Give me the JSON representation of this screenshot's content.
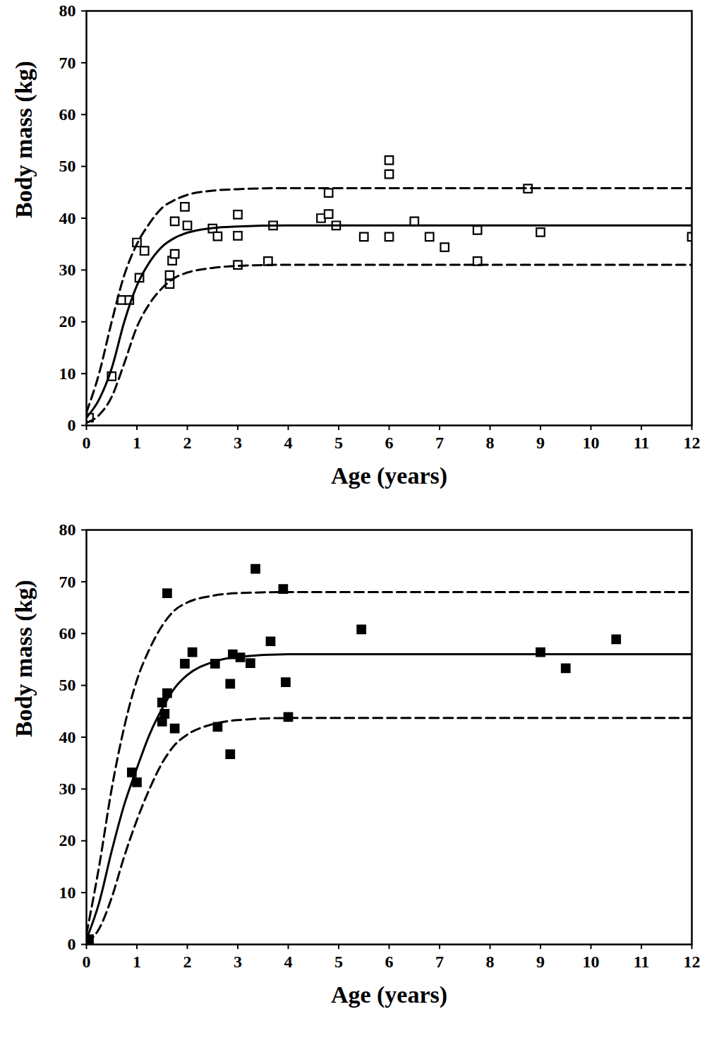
{
  "chart_data": [
    {
      "type": "scatter",
      "xlabel": "Age (years)",
      "ylabel": "Body mass (kg)",
      "xlim": [
        0,
        12
      ],
      "ylim": [
        0,
        80
      ],
      "xticks": [
        0,
        1,
        2,
        3,
        4,
        5,
        6,
        7,
        8,
        9,
        10,
        11,
        12
      ],
      "yticks": [
        0,
        10,
        20,
        30,
        40,
        50,
        60,
        70,
        80
      ],
      "grid": false,
      "series": [
        {
          "type": "scatter",
          "marker": "open_square",
          "color": "#000000",
          "x": [
            0.05,
            0.5,
            0.7,
            0.85,
            1.0,
            1.05,
            1.15,
            1.65,
            1.65,
            1.7,
            1.75,
            1.75,
            1.95,
            2.0,
            2.5,
            2.6,
            3.0,
            3.0,
            3.0,
            3.6,
            3.7,
            4.65,
            4.8,
            4.8,
            4.95,
            5.5,
            6.0,
            6.0,
            6.0,
            6.5,
            6.8,
            7.1,
            7.75,
            7.75,
            8.75,
            9.0,
            12.0
          ],
          "values": [
            1.5,
            9.5,
            24.2,
            24.2,
            35.3,
            28.5,
            33.7,
            27.3,
            29.0,
            31.8,
            33.1,
            39.4,
            42.2,
            38.6,
            38.0,
            36.5,
            40.7,
            36.6,
            31.0,
            31.7,
            38.6,
            40.0,
            44.9,
            40.8,
            38.6,
            36.4,
            51.2,
            48.5,
            36.4,
            39.4,
            36.4,
            34.4,
            37.7,
            31.7,
            45.7,
            37.3,
            36.4
          ]
        },
        {
          "type": "line",
          "line_style": "solid",
          "color": "#000000",
          "x": [
            0,
            0.25,
            0.5,
            0.75,
            1,
            1.25,
            1.5,
            1.75,
            2,
            2.5,
            3,
            4,
            6,
            12
          ],
          "values": [
            1.5,
            5,
            11,
            20,
            27,
            31.5,
            34.5,
            36.2,
            37.2,
            38.1,
            38.4,
            38.6,
            38.6,
            38.6
          ]
        },
        {
          "type": "line",
          "line_style": "dashed",
          "color": "#000000",
          "x": [
            0,
            0.25,
            0.5,
            0.75,
            1,
            1.25,
            1.5,
            1.75,
            2,
            2.5,
            3,
            4,
            12
          ],
          "values": [
            2.5,
            10,
            20,
            29,
            35,
            39,
            42,
            43.5,
            44.5,
            45.3,
            45.6,
            45.8,
            45.8
          ]
        },
        {
          "type": "line",
          "line_style": "dashed",
          "color": "#000000",
          "x": [
            0,
            0.25,
            0.5,
            0.75,
            1,
            1.25,
            1.5,
            1.75,
            2,
            2.5,
            3,
            4,
            12
          ],
          "values": [
            0.5,
            2,
            5.5,
            12,
            19,
            23.5,
            26.5,
            28.5,
            29.5,
            30.4,
            30.8,
            31,
            31
          ]
        }
      ]
    },
    {
      "type": "scatter",
      "xlabel": "Age (years)",
      "ylabel": "Body mass (kg)",
      "xlim": [
        0,
        12
      ],
      "ylim": [
        0,
        80
      ],
      "xticks": [
        0,
        1,
        2,
        3,
        4,
        5,
        6,
        7,
        8,
        9,
        10,
        11,
        12
      ],
      "yticks": [
        0,
        10,
        20,
        30,
        40,
        50,
        60,
        70,
        80
      ],
      "grid": false,
      "series": [
        {
          "type": "scatter",
          "marker": "square",
          "color": "#000000",
          "x": [
            0.05,
            0.9,
            1.0,
            1.5,
            1.5,
            1.55,
            1.6,
            1.6,
            1.75,
            1.95,
            2.1,
            2.55,
            2.6,
            2.85,
            2.85,
            2.9,
            3.05,
            3.25,
            3.35,
            3.65,
            3.9,
            3.95,
            4.0,
            5.45,
            9.0,
            9.5,
            10.5
          ],
          "values": [
            1.0,
            33.2,
            31.3,
            43.0,
            46.7,
            44.5,
            48.5,
            67.8,
            41.7,
            54.2,
            56.4,
            54.2,
            42.0,
            50.3,
            36.7,
            56.0,
            55.4,
            54.3,
            72.5,
            58.5,
            68.6,
            50.6,
            43.9,
            60.8,
            56.4,
            53.3,
            58.9
          ]
        },
        {
          "type": "line",
          "line_style": "solid",
          "color": "#000000",
          "x": [
            0,
            0.25,
            0.5,
            0.75,
            1,
            1.25,
            1.5,
            1.75,
            2,
            2.5,
            3,
            4,
            12
          ],
          "values": [
            1,
            8,
            18,
            27,
            34,
            40.5,
            45.5,
            49.5,
            52,
            54.5,
            55.5,
            56,
            56
          ]
        },
        {
          "type": "line",
          "line_style": "dashed",
          "color": "#000000",
          "x": [
            0,
            0.25,
            0.5,
            0.75,
            1,
            1.25,
            1.5,
            1.75,
            2,
            2.5,
            3,
            4,
            12
          ],
          "values": [
            2,
            15,
            30,
            42,
            51,
            57,
            61.5,
            64.5,
            66,
            67.3,
            67.8,
            68,
            68
          ]
        },
        {
          "type": "line",
          "line_style": "dashed",
          "color": "#000000",
          "x": [
            0,
            0.25,
            0.5,
            0.75,
            1,
            1.25,
            1.5,
            1.75,
            2,
            2.5,
            3,
            4,
            12
          ],
          "values": [
            0.3,
            3,
            9,
            17,
            24,
            30,
            35,
            38.5,
            40.5,
            42.5,
            43.3,
            43.7,
            43.7
          ]
        }
      ]
    }
  ]
}
